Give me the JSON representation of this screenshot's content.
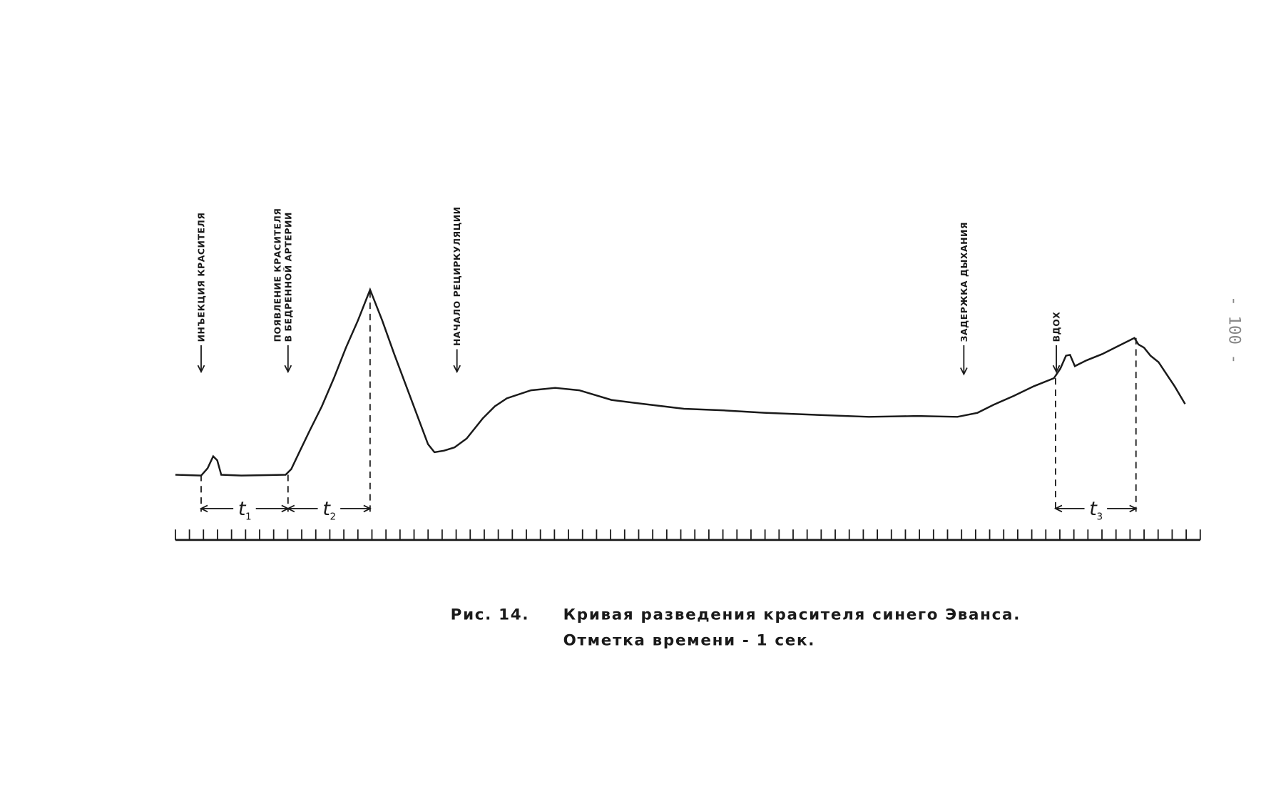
{
  "figure": {
    "annotations": [
      {
        "lines": [
          "инъекция красителя"
        ]
      },
      {
        "lines": [
          "появление красителя",
          "в бедренной артерии"
        ]
      },
      {
        "lines": [
          "начало рециркуляции"
        ]
      },
      {
        "lines": [
          "задержка дыхания"
        ]
      },
      {
        "lines": [
          "вдох"
        ]
      }
    ],
    "intervals": [
      {
        "symbol": "t",
        "index": "1"
      },
      {
        "symbol": "t",
        "index": "2"
      },
      {
        "symbol": "t",
        "index": "3"
      }
    ],
    "caption": {
      "label": "Рис. 14.",
      "line1": "Кривая разведения красителя синего Эванса.",
      "line2": "Отметка времени - 1 сек."
    }
  },
  "page_number": "- 100 -"
}
